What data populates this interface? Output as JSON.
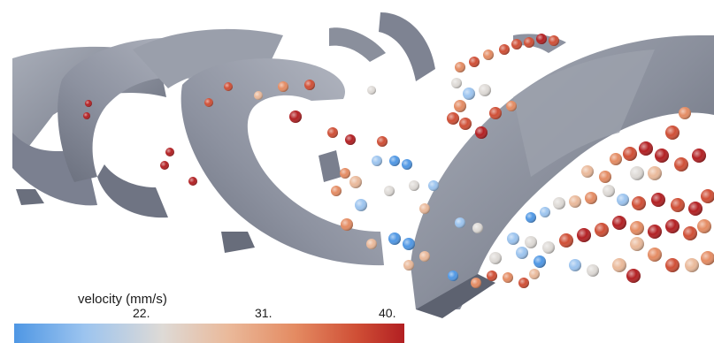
{
  "colorbar": {
    "title": "velocity (mm/s)",
    "ticks": [
      "22.",
      "31.",
      "40."
    ],
    "gradient": [
      "#4f97e4",
      "#9cc4ef",
      "#dedad6",
      "#eab99a",
      "#e48b62",
      "#cf4e35",
      "#b21f22"
    ]
  },
  "scene": {
    "description_colors": {
      "blade": "#8e939f",
      "blade_dark": "#5f6472",
      "blade_light": "#b4b8c2"
    }
  }
}
